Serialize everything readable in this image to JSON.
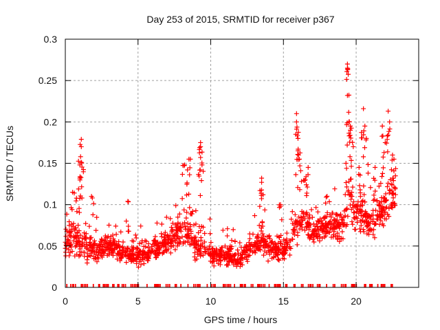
{
  "chart_data": {
    "type": "scatter",
    "title": "Day 253 of 2015, SRMTID for receiver p367",
    "xlabel": "GPS time / hours",
    "ylabel": "SRMTID / TECUs",
    "xlim": [
      0,
      24.3
    ],
    "ylim": [
      0,
      0.3
    ],
    "xticks": [
      "0",
      "5",
      "10",
      "15",
      "20"
    ],
    "xtick_values": [
      0,
      5,
      10,
      15,
      20
    ],
    "yticks": [
      "0",
      "0.05",
      "0.1",
      "0.15",
      "0.2",
      "0.25",
      "0.3"
    ],
    "ytick_values": [
      0,
      0.05,
      0.1,
      0.15,
      0.2,
      0.25,
      0.3
    ],
    "grid": true,
    "marker": "plus",
    "color": "#ff0000",
    "series": [
      {
        "name": "SRMTID",
        "envelope_hourly": [
          {
            "x": 0.0,
            "median": 0.055,
            "spread": 0.03
          },
          {
            "x": 0.5,
            "median": 0.06,
            "spread": 0.035
          },
          {
            "x": 1.0,
            "median": 0.055,
            "spread": 0.035
          },
          {
            "x": 1.5,
            "median": 0.05,
            "spread": 0.03
          },
          {
            "x": 2.0,
            "median": 0.045,
            "spread": 0.025
          },
          {
            "x": 2.5,
            "median": 0.045,
            "spread": 0.025
          },
          {
            "x": 3.0,
            "median": 0.05,
            "spread": 0.025
          },
          {
            "x": 3.5,
            "median": 0.048,
            "spread": 0.025
          },
          {
            "x": 4.0,
            "median": 0.042,
            "spread": 0.02
          },
          {
            "x": 4.5,
            "median": 0.038,
            "spread": 0.02
          },
          {
            "x": 5.0,
            "median": 0.037,
            "spread": 0.018
          },
          {
            "x": 5.5,
            "median": 0.04,
            "spread": 0.02
          },
          {
            "x": 6.0,
            "median": 0.045,
            "spread": 0.022
          },
          {
            "x": 6.5,
            "median": 0.05,
            "spread": 0.025
          },
          {
            "x": 7.0,
            "median": 0.055,
            "spread": 0.025
          },
          {
            "x": 7.5,
            "median": 0.06,
            "spread": 0.03
          },
          {
            "x": 8.0,
            "median": 0.07,
            "spread": 0.035
          },
          {
            "x": 8.5,
            "median": 0.07,
            "spread": 0.04
          },
          {
            "x": 9.0,
            "median": 0.05,
            "spread": 0.03
          },
          {
            "x": 9.5,
            "median": 0.055,
            "spread": 0.035
          },
          {
            "x": 10.0,
            "median": 0.04,
            "spread": 0.022
          },
          {
            "x": 10.5,
            "median": 0.038,
            "spread": 0.02
          },
          {
            "x": 11.0,
            "median": 0.04,
            "spread": 0.02
          },
          {
            "x": 11.5,
            "median": 0.035,
            "spread": 0.018
          },
          {
            "x": 12.0,
            "median": 0.035,
            "spread": 0.018
          },
          {
            "x": 12.5,
            "median": 0.045,
            "spread": 0.02
          },
          {
            "x": 13.0,
            "median": 0.05,
            "spread": 0.02
          },
          {
            "x": 13.5,
            "median": 0.055,
            "spread": 0.025
          },
          {
            "x": 14.0,
            "median": 0.05,
            "spread": 0.022
          },
          {
            "x": 14.5,
            "median": 0.045,
            "spread": 0.02
          },
          {
            "x": 15.0,
            "median": 0.045,
            "spread": 0.022
          },
          {
            "x": 15.5,
            "median": 0.06,
            "spread": 0.03
          },
          {
            "x": 16.0,
            "median": 0.08,
            "spread": 0.04
          },
          {
            "x": 16.5,
            "median": 0.085,
            "spread": 0.035
          },
          {
            "x": 17.0,
            "median": 0.065,
            "spread": 0.025
          },
          {
            "x": 17.5,
            "median": 0.07,
            "spread": 0.025
          },
          {
            "x": 18.0,
            "median": 0.075,
            "spread": 0.025
          },
          {
            "x": 18.5,
            "median": 0.075,
            "spread": 0.03
          },
          {
            "x": 19.0,
            "median": 0.07,
            "spread": 0.03
          },
          {
            "x": 19.5,
            "median": 0.1,
            "spread": 0.05
          },
          {
            "x": 20.0,
            "median": 0.09,
            "spread": 0.04
          },
          {
            "x": 20.5,
            "median": 0.085,
            "spread": 0.04
          },
          {
            "x": 21.0,
            "median": 0.08,
            "spread": 0.035
          },
          {
            "x": 21.5,
            "median": 0.085,
            "spread": 0.035
          },
          {
            "x": 22.0,
            "median": 0.1,
            "spread": 0.045
          },
          {
            "x": 22.5,
            "median": 0.11,
            "spread": 0.04
          }
        ],
        "peaks": [
          {
            "x": 1.1,
            "y": 0.179
          },
          {
            "x": 1.1,
            "y": 0.17
          },
          {
            "x": 1.05,
            "y": 0.158
          },
          {
            "x": 1.0,
            "y": 0.148
          },
          {
            "x": 1.0,
            "y": 0.132
          },
          {
            "x": 0.5,
            "y": 0.115
          },
          {
            "x": 1.8,
            "y": 0.11
          },
          {
            "x": 4.3,
            "y": 0.104
          },
          {
            "x": 8.2,
            "y": 0.148
          },
          {
            "x": 8.5,
            "y": 0.155
          },
          {
            "x": 8.4,
            "y": 0.142
          },
          {
            "x": 9.3,
            "y": 0.175
          },
          {
            "x": 9.3,
            "y": 0.17
          },
          {
            "x": 9.3,
            "y": 0.157
          },
          {
            "x": 9.4,
            "y": 0.148
          },
          {
            "x": 13.5,
            "y": 0.132
          },
          {
            "x": 13.5,
            "y": 0.127
          },
          {
            "x": 13.6,
            "y": 0.112
          },
          {
            "x": 14.8,
            "y": 0.1
          },
          {
            "x": 14.8,
            "y": 0.098
          },
          {
            "x": 15.9,
            "y": 0.21
          },
          {
            "x": 15.9,
            "y": 0.2
          },
          {
            "x": 16.0,
            "y": 0.18
          },
          {
            "x": 16.0,
            "y": 0.165
          },
          {
            "x": 16.1,
            "y": 0.155
          },
          {
            "x": 16.7,
            "y": 0.145
          },
          {
            "x": 16.5,
            "y": 0.13
          },
          {
            "x": 19.4,
            "y": 0.27
          },
          {
            "x": 19.4,
            "y": 0.265
          },
          {
            "x": 19.4,
            "y": 0.232
          },
          {
            "x": 19.5,
            "y": 0.2
          },
          {
            "x": 19.6,
            "y": 0.19
          },
          {
            "x": 19.6,
            "y": 0.195
          },
          {
            "x": 19.3,
            "y": 0.15
          },
          {
            "x": 19.8,
            "y": 0.17
          },
          {
            "x": 20.2,
            "y": 0.145
          },
          {
            "x": 20.5,
            "y": 0.216
          },
          {
            "x": 20.6,
            "y": 0.195
          },
          {
            "x": 20.7,
            "y": 0.18
          },
          {
            "x": 21.3,
            "y": 0.145
          },
          {
            "x": 21.8,
            "y": 0.195
          },
          {
            "x": 22.2,
            "y": 0.213
          },
          {
            "x": 22.3,
            "y": 0.2
          },
          {
            "x": 22.0,
            "y": 0.175
          },
          {
            "x": 22.5,
            "y": 0.16
          },
          {
            "x": 22.6,
            "y": 0.155
          }
        ],
        "zero_value_times": "many samples at y=0 distributed across 0–22.7 h"
      }
    ]
  }
}
